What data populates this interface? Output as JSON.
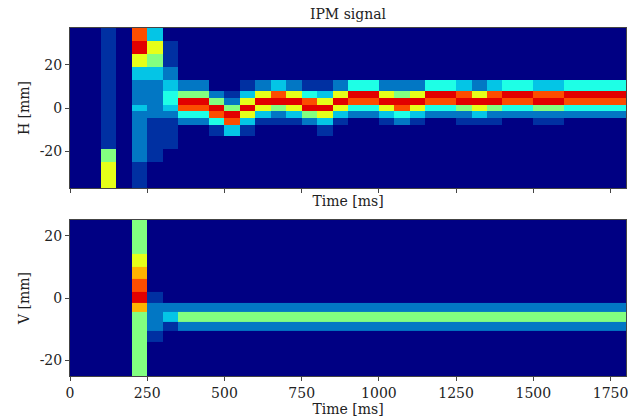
{
  "chart_data": [
    {
      "type": "heatmap",
      "title": "IPM signal",
      "xlabel": "Time [ms]",
      "ylabel": "H [mm]",
      "color": "Jet",
      "tick_labels": "y",
      "xlim": [
        0,
        1800
      ],
      "ylim": [
        -37,
        37
      ],
      "xticks": [
        0,
        250,
        500,
        750,
        1000,
        1250,
        1500,
        1750
      ],
      "yticks": [
        -20,
        0,
        20
      ],
      "zlim": [
        0,
        10
      ],
      "x": [
        25,
        75,
        125,
        175,
        225,
        275,
        325,
        375,
        425,
        475,
        525,
        575,
        625,
        675,
        725,
        775,
        825,
        875,
        925,
        975,
        1025,
        1075,
        1125,
        1175,
        1225,
        1275,
        1325,
        1375,
        1425,
        1475,
        1525,
        1575,
        1625,
        1675,
        1725,
        1775
      ],
      "y": [
        -34,
        -28,
        -22,
        -16,
        -10,
        -6,
        -3,
        0,
        3,
        6,
        10,
        16,
        22,
        28,
        34
      ],
      "z": [
        [
          0,
          0,
          6,
          0,
          1,
          0,
          0,
          0,
          0,
          0,
          0,
          0,
          0,
          0,
          0,
          0,
          0,
          0,
          0,
          0,
          0,
          0,
          0,
          0,
          0,
          0,
          0,
          0,
          0,
          0,
          0,
          0,
          0,
          0,
          0,
          0
        ],
        [
          0,
          0,
          6,
          0,
          1,
          0,
          0,
          0,
          0,
          0,
          0,
          0,
          0,
          0,
          0,
          0,
          0,
          0,
          0,
          0,
          0,
          0,
          0,
          0,
          0,
          0,
          0,
          0,
          0,
          0,
          0,
          0,
          0,
          0,
          0,
          0
        ],
        [
          0,
          0,
          5,
          0,
          2,
          1,
          0,
          0,
          0,
          0,
          0,
          0,
          0,
          0,
          0,
          0,
          0,
          0,
          0,
          0,
          0,
          0,
          0,
          0,
          0,
          0,
          0,
          0,
          0,
          0,
          0,
          0,
          0,
          0,
          0,
          0
        ],
        [
          0,
          0,
          1,
          0,
          2,
          1,
          1,
          0,
          0,
          0,
          0,
          0,
          0,
          0,
          0,
          0,
          0,
          0,
          0,
          0,
          0,
          0,
          0,
          0,
          0,
          0,
          0,
          0,
          0,
          0,
          0,
          0,
          0,
          0,
          0,
          0
        ],
        [
          0,
          0,
          1,
          0,
          2,
          1,
          1,
          0,
          0,
          1,
          3,
          1,
          0,
          0,
          0,
          0,
          1,
          0,
          0,
          0,
          0,
          0,
          0,
          0,
          0,
          0,
          0,
          0,
          0,
          0,
          0,
          0,
          0,
          0,
          0,
          0
        ],
        [
          0,
          0,
          1,
          0,
          2,
          1,
          1,
          2,
          2,
          4,
          8,
          3,
          1,
          1,
          1,
          2,
          3,
          1,
          0,
          0,
          1,
          2,
          1,
          0,
          0,
          1,
          1,
          1,
          0,
          0,
          1,
          1,
          0,
          0,
          0,
          0
        ],
        [
          0,
          0,
          1,
          0,
          2,
          2,
          2,
          4,
          4,
          8,
          9,
          6,
          3,
          2,
          3,
          5,
          6,
          3,
          2,
          2,
          3,
          4,
          3,
          2,
          2,
          2,
          3,
          2,
          2,
          2,
          2,
          2,
          2,
          2,
          2,
          2
        ],
        [
          0,
          0,
          1,
          0,
          3,
          2,
          3,
          8,
          8,
          9,
          5,
          9,
          6,
          5,
          6,
          9,
          9,
          6,
          4,
          4,
          6,
          8,
          6,
          4,
          4,
          5,
          6,
          5,
          4,
          4,
          5,
          5,
          4,
          4,
          4,
          4
        ],
        [
          0,
          0,
          1,
          0,
          2,
          2,
          4,
          9,
          9,
          5,
          2,
          6,
          9,
          9,
          9,
          8,
          6,
          9,
          8,
          8,
          9,
          9,
          9,
          8,
          8,
          9,
          9,
          9,
          8,
          8,
          9,
          9,
          8,
          8,
          8,
          8
        ],
        [
          0,
          0,
          1,
          0,
          2,
          2,
          4,
          5,
          5,
          2,
          1,
          3,
          6,
          8,
          6,
          4,
          3,
          6,
          9,
          9,
          6,
          5,
          6,
          9,
          9,
          8,
          6,
          8,
          9,
          9,
          8,
          8,
          9,
          9,
          9,
          9
        ],
        [
          0,
          0,
          1,
          0,
          2,
          2,
          3,
          2,
          2,
          0,
          0,
          1,
          2,
          3,
          2,
          1,
          1,
          2,
          4,
          4,
          2,
          2,
          2,
          4,
          4,
          3,
          2,
          3,
          4,
          4,
          3,
          3,
          4,
          4,
          4,
          4
        ],
        [
          0,
          0,
          1,
          0,
          3,
          3,
          2,
          0,
          0,
          0,
          0,
          0,
          0,
          0,
          0,
          0,
          0,
          0,
          0,
          0,
          0,
          0,
          0,
          0,
          0,
          0,
          0,
          0,
          0,
          0,
          0,
          0,
          0,
          0,
          0,
          0
        ],
        [
          0,
          0,
          1,
          0,
          6,
          5,
          1,
          0,
          0,
          0,
          0,
          0,
          0,
          0,
          0,
          0,
          0,
          0,
          0,
          0,
          0,
          0,
          0,
          0,
          0,
          0,
          0,
          0,
          0,
          0,
          0,
          0,
          0,
          0,
          0,
          0
        ],
        [
          0,
          0,
          1,
          0,
          9,
          6,
          1,
          0,
          0,
          0,
          0,
          0,
          0,
          0,
          0,
          0,
          0,
          0,
          0,
          0,
          0,
          0,
          0,
          0,
          0,
          0,
          0,
          0,
          0,
          0,
          0,
          0,
          0,
          0,
          0,
          0
        ],
        [
          0,
          0,
          1,
          0,
          8,
          3,
          0,
          0,
          0,
          0,
          0,
          0,
          0,
          0,
          0,
          0,
          0,
          0,
          0,
          0,
          0,
          0,
          0,
          0,
          0,
          0,
          0,
          0,
          0,
          0,
          0,
          0,
          0,
          0,
          0,
          0
        ]
      ]
    },
    {
      "type": "heatmap",
      "xlabel": "Time [ms]",
      "ylabel": "V [mm]",
      "color": "Jet",
      "xlim": [
        0,
        1800
      ],
      "ylim": [
        -25,
        25
      ],
      "xticks": [
        0,
        250,
        500,
        750,
        1000,
        1250,
        1500,
        1750
      ],
      "yticks": [
        -20,
        0,
        20
      ],
      "zlim": [
        0,
        10
      ],
      "x": [
        25,
        75,
        125,
        175,
        225,
        275,
        325,
        375,
        425,
        475,
        525,
        575,
        625,
        675,
        725,
        775,
        825,
        875,
        925,
        975,
        1025,
        1075,
        1125,
        1175,
        1225,
        1275,
        1325,
        1375,
        1425,
        1475,
        1525,
        1575,
        1625,
        1675,
        1725,
        1775
      ],
      "y": [
        -24,
        -20,
        -16,
        -12,
        -9,
        -6,
        -3,
        0,
        4,
        8,
        12,
        16,
        20,
        24
      ],
      "z": [
        [
          0,
          0,
          0,
          0,
          5,
          0,
          0,
          0,
          0,
          0,
          0,
          0,
          0,
          0,
          0,
          0,
          0,
          0,
          0,
          0,
          0,
          0,
          0,
          0,
          0,
          0,
          0,
          0,
          0,
          0,
          0,
          0,
          0,
          0,
          0,
          0
        ],
        [
          0,
          0,
          0,
          0,
          5,
          0,
          0,
          0,
          0,
          0,
          0,
          0,
          0,
          0,
          0,
          0,
          0,
          0,
          0,
          0,
          0,
          0,
          0,
          0,
          0,
          0,
          0,
          0,
          0,
          0,
          0,
          0,
          0,
          0,
          0,
          0
        ],
        [
          0,
          0,
          0,
          0,
          5,
          0,
          0,
          0,
          0,
          0,
          0,
          0,
          0,
          0,
          0,
          0,
          0,
          0,
          0,
          0,
          0,
          0,
          0,
          0,
          0,
          0,
          0,
          0,
          0,
          0,
          0,
          0,
          0,
          0,
          0,
          0
        ],
        [
          0,
          0,
          0,
          0,
          5,
          1,
          0,
          0,
          0,
          0,
          0,
          0,
          0,
          0,
          0,
          0,
          0,
          0,
          0,
          0,
          0,
          0,
          0,
          0,
          0,
          0,
          0,
          0,
          0,
          0,
          0,
          0,
          0,
          0,
          0,
          0
        ],
        [
          0,
          0,
          0,
          0,
          5,
          2,
          1,
          2,
          2,
          2,
          2,
          2,
          2,
          2,
          2,
          2,
          2,
          2,
          2,
          2,
          2,
          2,
          2,
          2,
          2,
          2,
          2,
          2,
          2,
          2,
          2,
          2,
          2,
          2,
          2,
          2
        ],
        [
          0,
          0,
          0,
          0,
          5,
          2,
          3,
          5,
          5,
          5,
          5,
          5,
          5,
          5,
          5,
          5,
          5,
          5,
          5,
          5,
          5,
          5,
          5,
          5,
          5,
          5,
          5,
          5,
          5,
          5,
          5,
          5,
          5,
          5,
          5,
          5
        ],
        [
          0,
          0,
          0,
          0,
          7,
          2,
          2,
          2,
          2,
          2,
          2,
          2,
          2,
          2,
          2,
          2,
          2,
          2,
          2,
          2,
          2,
          2,
          2,
          2,
          2,
          2,
          2,
          2,
          2,
          2,
          2,
          2,
          2,
          2,
          2,
          2
        ],
        [
          0,
          0,
          0,
          0,
          9,
          1,
          0,
          0,
          0,
          0,
          0,
          0,
          0,
          0,
          0,
          0,
          0,
          0,
          0,
          0,
          0,
          0,
          0,
          0,
          0,
          0,
          0,
          0,
          0,
          0,
          0,
          0,
          0,
          0,
          0,
          0
        ],
        [
          0,
          0,
          0,
          0,
          8,
          0,
          0,
          0,
          0,
          0,
          0,
          0,
          0,
          0,
          0,
          0,
          0,
          0,
          0,
          0,
          0,
          0,
          0,
          0,
          0,
          0,
          0,
          0,
          0,
          0,
          0,
          0,
          0,
          0,
          0,
          0
        ],
        [
          0,
          0,
          0,
          0,
          7,
          0,
          0,
          0,
          0,
          0,
          0,
          0,
          0,
          0,
          0,
          0,
          0,
          0,
          0,
          0,
          0,
          0,
          0,
          0,
          0,
          0,
          0,
          0,
          0,
          0,
          0,
          0,
          0,
          0,
          0,
          0
        ],
        [
          0,
          0,
          0,
          0,
          6,
          0,
          0,
          0,
          0,
          0,
          0,
          0,
          0,
          0,
          0,
          0,
          0,
          0,
          0,
          0,
          0,
          0,
          0,
          0,
          0,
          0,
          0,
          0,
          0,
          0,
          0,
          0,
          0,
          0,
          0,
          0
        ],
        [
          0,
          0,
          0,
          0,
          5,
          0,
          0,
          0,
          0,
          0,
          0,
          0,
          0,
          0,
          0,
          0,
          0,
          0,
          0,
          0,
          0,
          0,
          0,
          0,
          0,
          0,
          0,
          0,
          0,
          0,
          0,
          0,
          0,
          0,
          0,
          0
        ],
        [
          0,
          0,
          0,
          0,
          5,
          0,
          0,
          0,
          0,
          0,
          0,
          0,
          0,
          0,
          0,
          0,
          0,
          0,
          0,
          0,
          0,
          0,
          0,
          0,
          0,
          0,
          0,
          0,
          0,
          0,
          0,
          0,
          0,
          0,
          0,
          0
        ],
        [
          0,
          0,
          0,
          0,
          5,
          0,
          0,
          0,
          0,
          0,
          0,
          0,
          0,
          0,
          0,
          0,
          0,
          0,
          0,
          0,
          0,
          0,
          0,
          0,
          0,
          0,
          0,
          0,
          0,
          0,
          0,
          0,
          0,
          0,
          0,
          0
        ]
      ]
    }
  ]
}
